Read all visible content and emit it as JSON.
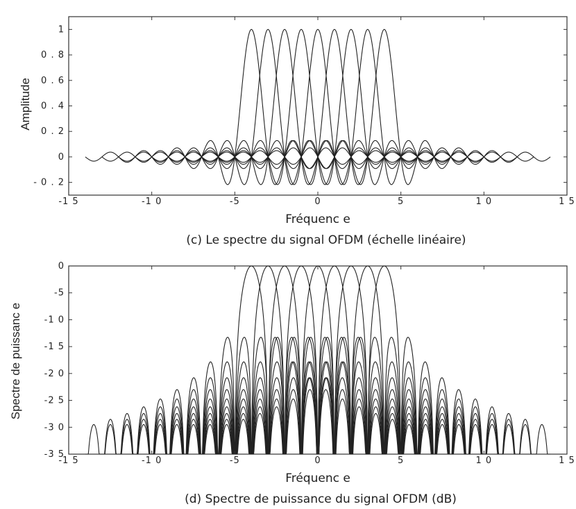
{
  "chart_data": [
    {
      "id": "linear",
      "type": "line",
      "caption": "(c) Le spectre du signal OFDM (échelle linéaire)",
      "xlabel": "Fréquenc e",
      "ylabel": "Amplitude",
      "xlim": [
        -15,
        15
      ],
      "ylim": [
        -0.3,
        1.1
      ],
      "xticks": [
        -15,
        -10,
        -5,
        0,
        5,
        10,
        15
      ],
      "xtick_labels": [
        "-1 5",
        "-1 0",
        "-5",
        "0",
        "5",
        "1 0",
        "1 5"
      ],
      "yticks": [
        -0.2,
        0,
        0.2,
        0.4,
        0.6,
        0.8,
        1
      ],
      "ytick_labels": [
        "- 0 . 2",
        "0",
        "0 . 2",
        "0 . 4",
        "0 . 6",
        "0 . 8",
        "1"
      ],
      "grid": false,
      "series": [
        {
          "function": "sinc",
          "center": -4,
          "x_range": [
            -14,
            6
          ]
        },
        {
          "function": "sinc",
          "center": -3,
          "x_range": [
            -13,
            7
          ]
        },
        {
          "function": "sinc",
          "center": -2,
          "x_range": [
            -12,
            8
          ]
        },
        {
          "function": "sinc",
          "center": -1,
          "x_range": [
            -11,
            9
          ]
        },
        {
          "function": "sinc",
          "center": 0,
          "x_range": [
            -10,
            10
          ]
        },
        {
          "function": "sinc",
          "center": 1,
          "x_range": [
            -9,
            11
          ]
        },
        {
          "function": "sinc",
          "center": 2,
          "x_range": [
            -8,
            12
          ]
        },
        {
          "function": "sinc",
          "center": 3,
          "x_range": [
            -7,
            13
          ]
        },
        {
          "function": "sinc",
          "center": 4,
          "x_range": [
            -6,
            14
          ]
        }
      ]
    },
    {
      "id": "power",
      "type": "line",
      "caption": "(d) Spectre de puissance du signal OFDM (dB)",
      "xlabel": "Fréquenc e",
      "ylabel": "Spectre de puissanc e",
      "xlim": [
        -15,
        15
      ],
      "ylim": [
        -35,
        0
      ],
      "xticks": [
        -15,
        -10,
        -5,
        0,
        5,
        10,
        15
      ],
      "xtick_labels": [
        "-1 5",
        "-1 0",
        "-5",
        "0",
        "5",
        "1 0",
        "1 5"
      ],
      "yticks": [
        0,
        -5,
        -10,
        -15,
        -20,
        -25,
        -30,
        -35
      ],
      "ytick_labels": [
        "0",
        "-5",
        "-1 0",
        "-1 5",
        "-2 0",
        "-2 5",
        "-3 0",
        "-3 5"
      ],
      "grid": false,
      "series": [
        {
          "function": "sinc_db",
          "center": -4,
          "x_range": [
            -14,
            6
          ]
        },
        {
          "function": "sinc_db",
          "center": -3,
          "x_range": [
            -13,
            7
          ]
        },
        {
          "function": "sinc_db",
          "center": -2,
          "x_range": [
            -12,
            8
          ]
        },
        {
          "function": "sinc_db",
          "center": -1,
          "x_range": [
            -11,
            9
          ]
        },
        {
          "function": "sinc_db",
          "center": 0,
          "x_range": [
            -10,
            10
          ]
        },
        {
          "function": "sinc_db",
          "center": 1,
          "x_range": [
            -9,
            11
          ]
        },
        {
          "function": "sinc_db",
          "center": 2,
          "x_range": [
            -8,
            12
          ]
        },
        {
          "function": "sinc_db",
          "center": 3,
          "x_range": [
            -7,
            13
          ]
        },
        {
          "function": "sinc_db",
          "center": 4,
          "x_range": [
            -6,
            14
          ]
        }
      ]
    }
  ]
}
